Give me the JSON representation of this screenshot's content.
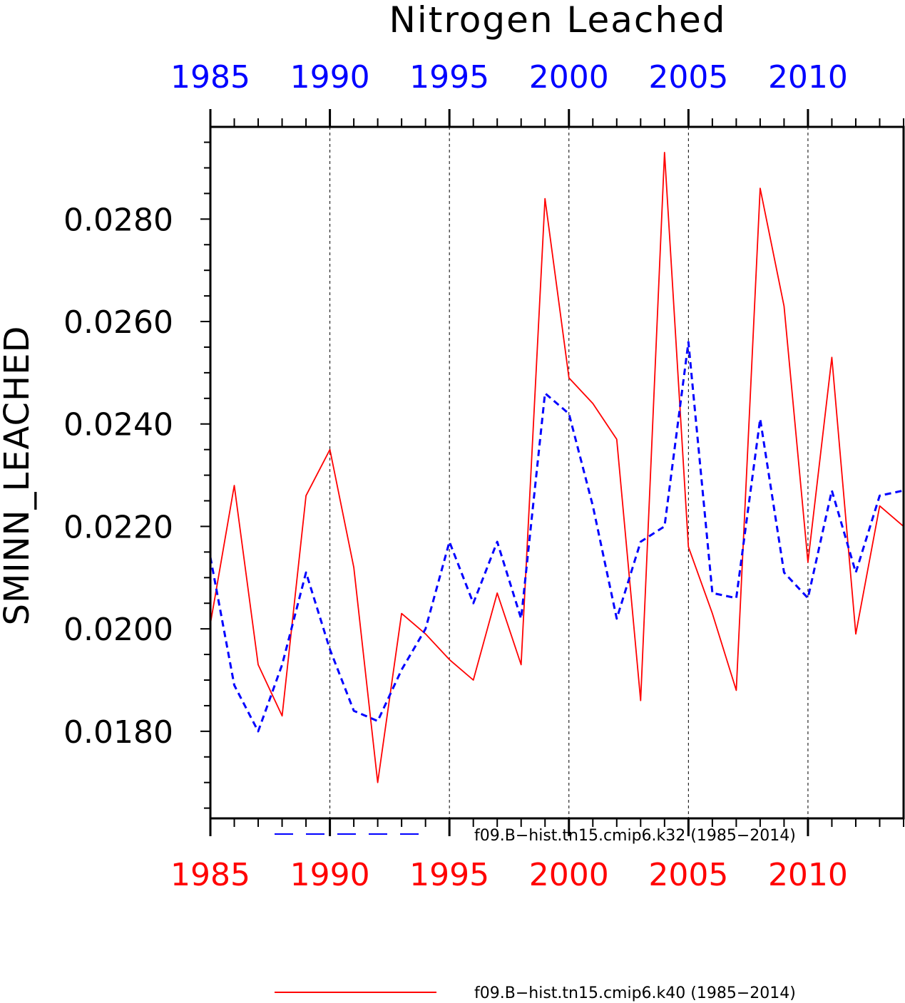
{
  "colors": {
    "series_k32": "#0000ff",
    "series_k40": "#ff0000",
    "axis": "#000000"
  },
  "chart_data": {
    "type": "line",
    "title": "Nitrogen Leached",
    "ylabel": "SMINN_LEACHED",
    "xlabel": "",
    "xlim": [
      1985,
      2014
    ],
    "ylim": [
      0.0163,
      0.0298
    ],
    "x_ticks": [
      1985,
      1990,
      1995,
      2000,
      2005,
      2010
    ],
    "x_tick_labels": [
      "1985",
      "1990",
      "1995",
      "2000",
      "2005",
      "2010"
    ],
    "y_ticks": [
      0.018,
      0.02,
      0.022,
      0.024,
      0.026,
      0.028
    ],
    "y_tick_labels": [
      "0.0180",
      "0.0200",
      "0.0220",
      "0.0240",
      "0.0260",
      "0.0280"
    ],
    "grid": "vertical dashed lines at labeled years",
    "legend_position": "bottom",
    "x": [
      1985,
      1986,
      1987,
      1988,
      1989,
      1990,
      1991,
      1992,
      1993,
      1994,
      1995,
      1996,
      1997,
      1998,
      1999,
      2000,
      2001,
      2002,
      2003,
      2004,
      2005,
      2006,
      2007,
      2008,
      2009,
      2010,
      2011,
      2012,
      2013,
      2014
    ],
    "series": [
      {
        "name": "f09.B−hist.tn15.cmip6.k32 (1985−2014)",
        "color": "#0000ff",
        "style": "dashed",
        "values": [
          0.0214,
          0.0189,
          0.018,
          0.0193,
          0.0211,
          0.0196,
          0.0184,
          0.0182,
          0.0192,
          0.02,
          0.0217,
          0.0205,
          0.0217,
          0.0202,
          0.0246,
          0.0242,
          0.0224,
          0.0202,
          0.0217,
          0.022,
          0.0256,
          0.0207,
          0.0206,
          0.0241,
          0.0211,
          0.0206,
          0.0227,
          0.0211,
          0.0226,
          0.0227
        ]
      },
      {
        "name": "f09.B−hist.tn15.cmip6.k40 (1985−2014)",
        "color": "#ff0000",
        "style": "solid",
        "values": [
          0.0201,
          0.0228,
          0.0193,
          0.0183,
          0.0226,
          0.0235,
          0.0212,
          0.017,
          0.0203,
          0.0199,
          0.0194,
          0.019,
          0.0207,
          0.0193,
          0.0284,
          0.0249,
          0.0244,
          0.0237,
          0.0186,
          0.0293,
          0.0216,
          0.0203,
          0.0188,
          0.0286,
          0.0263,
          0.0213,
          0.0253,
          0.0199,
          0.0224,
          0.022
        ]
      }
    ]
  }
}
